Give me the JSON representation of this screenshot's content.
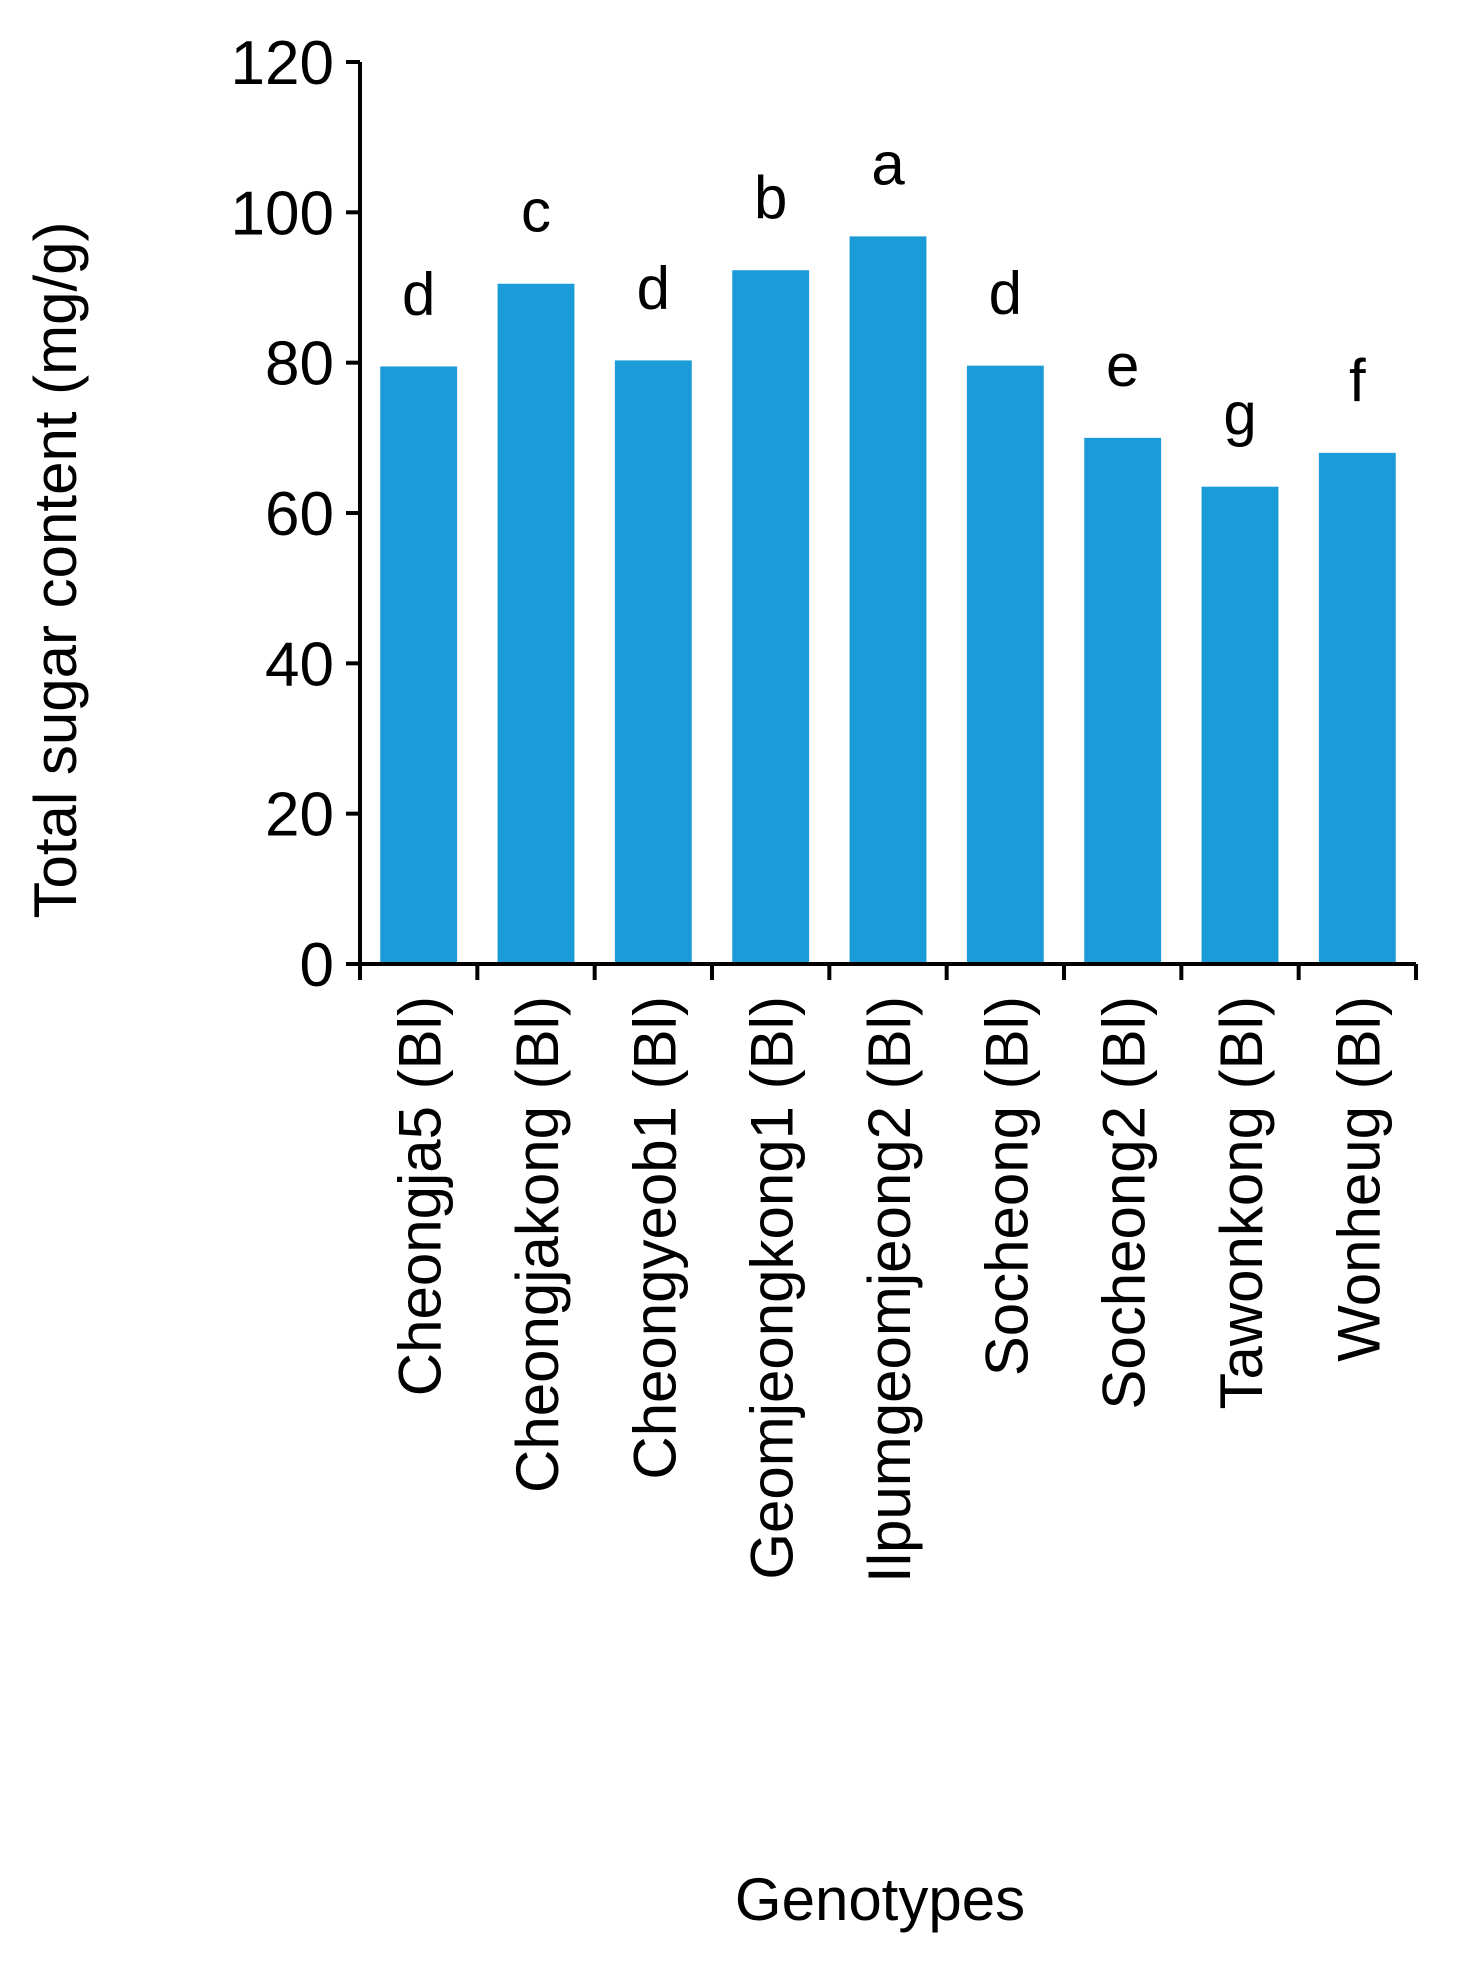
{
  "chart_data": {
    "type": "bar",
    "title": "",
    "xlabel": "Genotypes",
    "ylabel": "Total sugar content (mg/g)",
    "ylim": [
      0,
      120
    ],
    "yticks": [
      "0",
      "20",
      "40",
      "60",
      "80",
      "100",
      "120"
    ],
    "categories": [
      "Cheongja5 (Bl)",
      "Cheongjakong (Bl)",
      "Cheongyeob1 (Bl)",
      "Geomjeongkong1 (Bl)",
      "Ilpumgeomjeong2 (Bl)",
      "Socheong (Bl)",
      "Socheong2 (Bl)",
      "Tawonkong (Bl)",
      "Wonheug (Bl)"
    ],
    "values": [
      79.5,
      90.5,
      80.3,
      92.3,
      96.8,
      79.6,
      70.0,
      63.5,
      68.0
    ],
    "significance_letters": [
      "d",
      "c",
      "d",
      "b",
      "a",
      "d",
      "e",
      "g",
      "f"
    ],
    "grid": false,
    "legend": "none",
    "bar_color": "#1b9bd7"
  }
}
